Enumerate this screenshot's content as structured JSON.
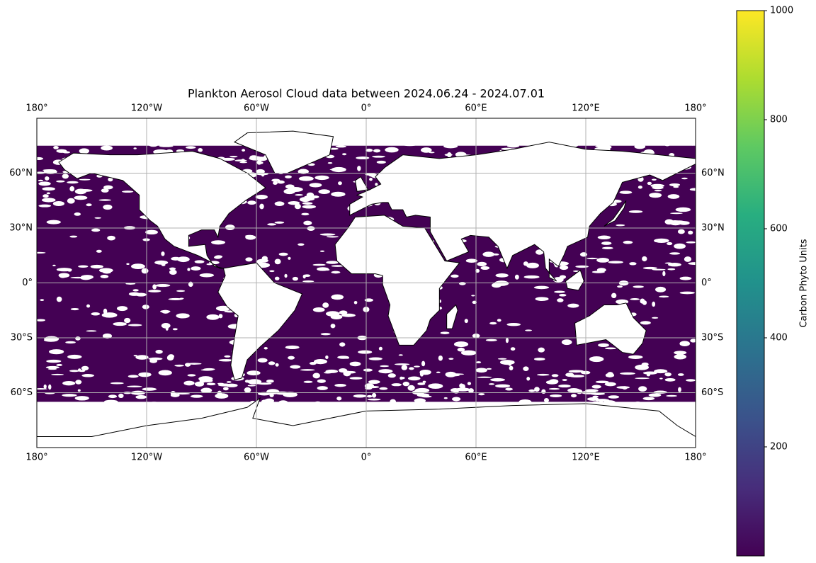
{
  "chart_data": {
    "type": "map",
    "title": "Plankton Aerosol Cloud data between 2024.06.24 - 2024.07.01",
    "projection": "PlateCarree",
    "xlim": [
      -180,
      180
    ],
    "ylim": [
      -90,
      90
    ],
    "xticks": [
      {
        "value": -180,
        "label": "180°"
      },
      {
        "value": -120,
        "label": "120°W"
      },
      {
        "value": -60,
        "label": "60°W"
      },
      {
        "value": 0,
        "label": "0°"
      },
      {
        "value": 60,
        "label": "60°E"
      },
      {
        "value": 120,
        "label": "120°E"
      },
      {
        "value": 180,
        "label": "180°"
      }
    ],
    "yticks": [
      {
        "value": 60,
        "label": "60°N"
      },
      {
        "value": 30,
        "label": "30°N"
      },
      {
        "value": 0,
        "label": "0°"
      },
      {
        "value": -30,
        "label": "30°S"
      },
      {
        "value": -60,
        "label": "60°S"
      }
    ],
    "grid": true,
    "colorbar": {
      "label": "Carbon Phyto Units",
      "lim": [
        0,
        1000
      ],
      "ticks": [
        200,
        400,
        600,
        800,
        1000
      ],
      "colormap": "viridis"
    }
  }
}
